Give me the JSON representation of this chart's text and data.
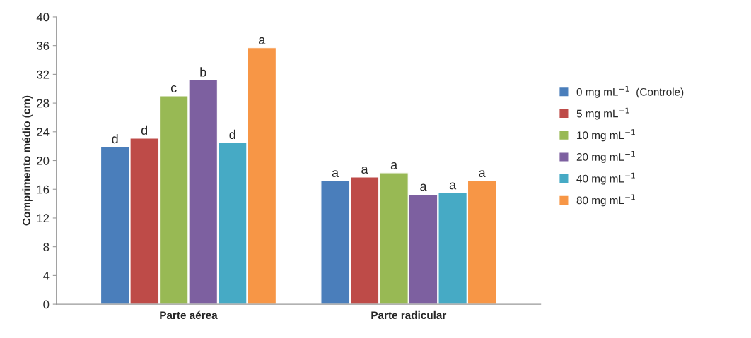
{
  "chart_data": {
    "type": "bar",
    "ylabel": "Comprimento médio (cm)",
    "categories": [
      "Parte aérea",
      "Parte radicular"
    ],
    "series": [
      {
        "name": "0 mg mL$^{−1}$  (Controle)",
        "color": "#4a7ebb",
        "values": [
          21.9,
          17.2
        ],
        "value_labels": [
          "d",
          "a"
        ]
      },
      {
        "name": "5 mg mL$^{−1}$",
        "color": "#be4b48",
        "values": [
          23.1,
          17.7
        ],
        "value_labels": [
          "d",
          "a"
        ]
      },
      {
        "name": "10 mg mL$^{−1}$",
        "color": "#98b954",
        "values": [
          29.0,
          18.3
        ],
        "value_labels": [
          "c",
          "a"
        ]
      },
      {
        "name": "20 mg mL$^{−1}$",
        "color": "#7d60a0",
        "values": [
          31.2,
          15.3
        ],
        "value_labels": [
          "b",
          "a"
        ]
      },
      {
        "name": "40 mg mL$^{−1}$",
        "color": "#46aac5",
        "values": [
          22.5,
          15.5
        ],
        "value_labels": [
          "d",
          "a"
        ]
      },
      {
        "name": "80 mg mL$^{−1}$",
        "color": "#f79646",
        "values": [
          35.7,
          17.2
        ],
        "value_labels": [
          "a",
          "a"
        ]
      }
    ],
    "ylim": [
      0,
      40
    ],
    "yticks": [
      0,
      4,
      8,
      12,
      16,
      20,
      24,
      28,
      32,
      36,
      40
    ],
    "grid": false,
    "legend": "right"
  }
}
